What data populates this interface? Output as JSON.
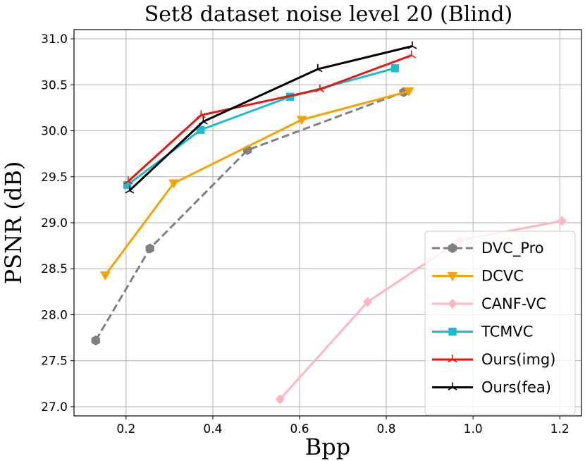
{
  "chart_data": {
    "type": "line",
    "title": "Set8 dataset noise level 20 (Blind)",
    "xlabel": "Bpp",
    "ylabel": "PSNR (dB)",
    "xlim": [
      0.08,
      1.25
    ],
    "ylim": [
      26.9,
      31.1
    ],
    "xticks": [
      0.2,
      0.4,
      0.6,
      0.8,
      1.0,
      1.2
    ],
    "xtick_labels": [
      "0.2",
      "0.4",
      "0.6",
      "0.8",
      "1.0",
      "1.2"
    ],
    "yticks": [
      27.0,
      27.5,
      28.0,
      28.5,
      29.0,
      29.5,
      30.0,
      30.5,
      31.0
    ],
    "ytick_labels": [
      "27.0",
      "27.5",
      "28.0",
      "28.5",
      "29.0",
      "29.5",
      "30.0",
      "30.5",
      "31.0"
    ],
    "grid": true,
    "legend_position": "lower-right",
    "series": [
      {
        "name": "DVC_Pro",
        "color": "#808080",
        "dash": "dashed",
        "marker": "hexagon",
        "x": [
          0.13,
          0.255,
          0.48,
          0.84
        ],
        "y": [
          27.72,
          28.72,
          29.79,
          30.42
        ]
      },
      {
        "name": "DCVC",
        "color": "#f5a300",
        "dash": "solid",
        "marker": "triangle-down",
        "x": [
          0.152,
          0.31,
          0.605,
          0.852
        ],
        "y": [
          28.43,
          29.43,
          30.12,
          30.43
        ]
      },
      {
        "name": "CANF-VC",
        "color": "#ffb6c1",
        "dash": "solid",
        "marker": "diamond",
        "x": [
          0.555,
          0.757,
          0.97,
          1.205
        ],
        "y": [
          27.08,
          28.14,
          28.81,
          29.02
        ]
      },
      {
        "name": "TCMVC",
        "color": "#17becf",
        "dash": "solid",
        "marker": "square",
        "x": [
          0.203,
          0.372,
          0.578,
          0.82
        ],
        "y": [
          29.41,
          30.01,
          30.37,
          30.68
        ]
      },
      {
        "name": "Ours(img)",
        "color": "#e8160c",
        "dash": "solid",
        "marker": "tri",
        "x": [
          0.205,
          0.373,
          0.647,
          0.858
        ],
        "y": [
          29.45,
          30.17,
          30.45,
          30.82
        ]
      },
      {
        "name": "Ours(fea)",
        "color": "#000000",
        "dash": "solid",
        "marker": "tri",
        "x": [
          0.208,
          0.378,
          0.642,
          0.86
        ],
        "y": [
          29.35,
          30.1,
          30.67,
          30.92
        ]
      }
    ]
  }
}
